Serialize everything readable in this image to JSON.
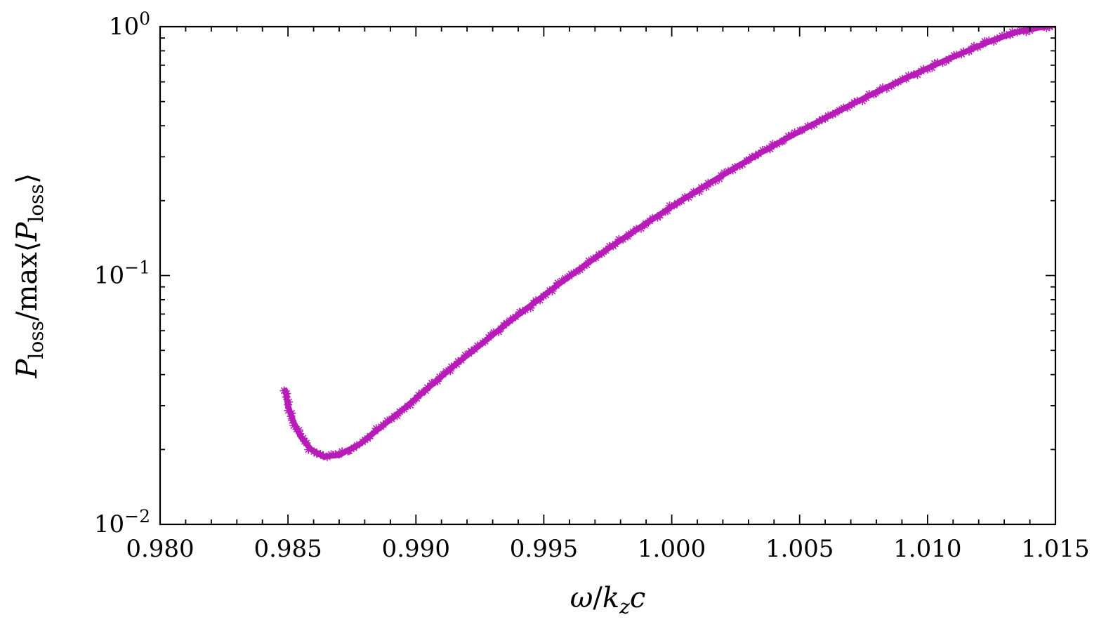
{
  "figure": {
    "background": "#ffffff",
    "frame_color": "#000000",
    "text_color": "#000000"
  },
  "chart_data": {
    "type": "scatter",
    "title": "",
    "marker": "asterisk",
    "series_color": "#b81cb8",
    "grid": false,
    "legend": null,
    "x_axis": {
      "label_segments": [
        {
          "text": "ω",
          "italic": true
        },
        {
          "text": "/",
          "italic": false
        },
        {
          "text": "k",
          "italic": true
        },
        {
          "text": "z",
          "italic": true,
          "sub": true
        },
        {
          "text": "c",
          "italic": true
        }
      ],
      "scale": "linear",
      "range": [
        0.98,
        1.015
      ],
      "major_ticks": [
        {
          "v": 0.98,
          "label": "0.980"
        },
        {
          "v": 0.985,
          "label": "0.985"
        },
        {
          "v": 0.99,
          "label": "0.990"
        },
        {
          "v": 0.995,
          "label": "0.995"
        },
        {
          "v": 1.0,
          "label": "1.000"
        },
        {
          "v": 1.005,
          "label": "1.005"
        },
        {
          "v": 1.01,
          "label": "1.010"
        },
        {
          "v": 1.015,
          "label": "1.015"
        }
      ],
      "minor_step": 0.001
    },
    "y_axis": {
      "label_segments": [
        {
          "text": "P",
          "italic": true
        },
        {
          "text": "loss",
          "sub": true,
          "italic": false
        },
        {
          "text": "/",
          "italic": false
        },
        {
          "text": "max",
          "italic": false
        },
        {
          "text": "⟨",
          "italic": false
        },
        {
          "text": "P",
          "italic": true
        },
        {
          "text": "loss",
          "sub": true,
          "italic": false
        },
        {
          "text": "⟩",
          "italic": false
        }
      ],
      "scale": "log10",
      "range_exponents": [
        -2,
        0
      ],
      "major_ticks": [
        {
          "v": 0.01,
          "base": "10",
          "exp": "−2"
        },
        {
          "v": 0.1,
          "base": "10",
          "exp": "−1"
        },
        {
          "v": 1.0,
          "base": "10",
          "exp": "0"
        }
      ],
      "minor_mantissas": [
        2,
        3,
        4,
        5,
        6,
        7,
        8,
        9
      ]
    },
    "series": [
      {
        "name": "P_loss_normalized",
        "color": "#b81cb8",
        "control_points": [
          [
            0.9849,
            0.0345
          ],
          [
            0.985,
            0.03
          ],
          [
            0.9852,
            0.026
          ],
          [
            0.9855,
            0.0225
          ],
          [
            0.9859,
            0.02
          ],
          [
            0.9864,
            0.0187
          ],
          [
            0.987,
            0.019
          ],
          [
            0.9878,
            0.021
          ],
          [
            0.9885,
            0.024
          ],
          [
            0.9895,
            0.029
          ],
          [
            0.9905,
            0.0355
          ],
          [
            0.9915,
            0.0435
          ],
          [
            0.9925,
            0.0525
          ],
          [
            0.9935,
            0.0635
          ],
          [
            0.9945,
            0.076
          ],
          [
            0.9955,
            0.091
          ],
          [
            0.9965,
            0.108
          ],
          [
            0.9975,
            0.128
          ],
          [
            0.9985,
            0.15
          ],
          [
            0.9995,
            0.175
          ],
          [
            1.0005,
            0.204
          ],
          [
            1.0015,
            0.236
          ],
          [
            1.0025,
            0.272
          ],
          [
            1.0035,
            0.312
          ],
          [
            1.0045,
            0.356
          ],
          [
            1.0055,
            0.404
          ],
          [
            1.0065,
            0.457
          ],
          [
            1.0075,
            0.515
          ],
          [
            1.0085,
            0.577
          ],
          [
            1.0095,
            0.645
          ],
          [
            1.0105,
            0.718
          ],
          [
            1.0115,
            0.795
          ],
          [
            1.0125,
            0.878
          ],
          [
            1.0135,
            0.952
          ],
          [
            1.015,
            1.02
          ]
        ]
      }
    ]
  }
}
